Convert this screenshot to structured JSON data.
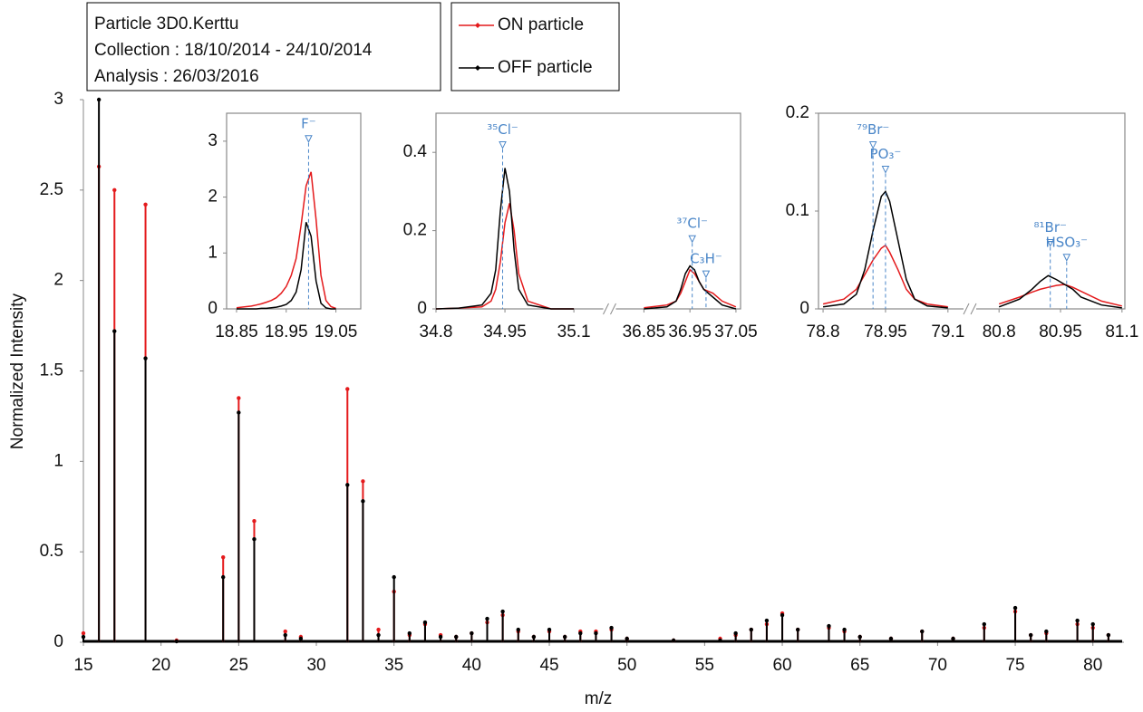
{
  "chart_data": [
    {
      "type": "spectrum",
      "info": [
        "Particle 3D0.Kerttu",
        "Collection : 18/10/2014 - 24/10/2014",
        "Analysis : 26/03/2016"
      ],
      "xlabel": "m/z",
      "ylabel": "Normalized Intensity",
      "xlim": [
        15,
        82
      ],
      "xticks": [
        15,
        20,
        25,
        30,
        35,
        40,
        45,
        50,
        55,
        60,
        65,
        70,
        75,
        80
      ],
      "ylim": [
        0,
        3
      ],
      "yticks": [
        0,
        0.5,
        1,
        1.5,
        2,
        2.5,
        3
      ],
      "x": [
        15,
        16,
        17,
        19,
        21,
        24,
        25,
        26,
        28,
        29,
        32,
        33,
        34,
        35,
        36,
        37,
        38,
        39,
        40,
        41,
        42,
        43,
        44,
        45,
        46,
        47,
        48,
        49,
        50,
        53,
        56,
        57,
        58,
        59,
        60,
        61,
        63,
        64,
        65,
        67,
        69,
        71,
        73,
        75,
        76,
        77,
        79,
        80,
        81
      ],
      "series": [
        {
          "name": "ON particle",
          "color": "#e41a1c",
          "values": [
            0.05,
            2.63,
            2.5,
            2.42,
            0.01,
            0.47,
            1.35,
            0.67,
            0.06,
            0.03,
            1.4,
            0.89,
            0.07,
            0.28,
            0.04,
            0.1,
            0.04,
            0.03,
            0.05,
            0.11,
            0.15,
            0.06,
            0.03,
            0.06,
            0.03,
            0.06,
            0.06,
            0.07,
            0.02,
            0.01,
            0.02,
            0.04,
            0.07,
            0.1,
            0.16,
            0.07,
            0.08,
            0.06,
            0.03,
            0.02,
            0.06,
            0.02,
            0.08,
            0.17,
            0.04,
            0.05,
            0.1,
            0.08,
            0.04
          ]
        },
        {
          "name": "OFF particle",
          "color": "#000000",
          "values": [
            0.03,
            3.0,
            1.72,
            1.57,
            0.005,
            0.36,
            1.27,
            0.57,
            0.04,
            0.02,
            0.87,
            0.78,
            0.04,
            0.36,
            0.05,
            0.11,
            0.03,
            0.03,
            0.05,
            0.13,
            0.17,
            0.07,
            0.03,
            0.07,
            0.03,
            0.05,
            0.05,
            0.08,
            0.02,
            0.01,
            0.01,
            0.05,
            0.07,
            0.12,
            0.15,
            0.07,
            0.09,
            0.07,
            0.03,
            0.02,
            0.06,
            0.02,
            0.1,
            0.19,
            0.04,
            0.06,
            0.12,
            0.1,
            0.04
          ]
        }
      ]
    },
    {
      "type": "line",
      "ylim": [
        0,
        3.5
      ],
      "yticks": [
        0,
        1,
        2,
        3
      ],
      "segments": [
        {
          "xlim": [
            18.83,
            19.1
          ],
          "xticks": [
            18.85,
            18.95,
            19.05
          ],
          "x": [
            18.85,
            18.86,
            18.87,
            18.88,
            18.89,
            18.9,
            18.91,
            18.92,
            18.93,
            18.94,
            18.95,
            18.96,
            18.97,
            18.98,
            18.99,
            19.0,
            19.01,
            19.02,
            19.03,
            19.04,
            19.05
          ],
          "series": [
            {
              "color": "#e41a1c",
              "values": [
                0.02,
                0.03,
                0.04,
                0.05,
                0.07,
                0.09,
                0.12,
                0.15,
                0.2,
                0.28,
                0.4,
                0.6,
                0.9,
                1.5,
                2.2,
                2.45,
                1.6,
                0.6,
                0.15,
                0.04,
                0.01
              ]
            },
            {
              "color": "#000000",
              "values": [
                0,
                0,
                0,
                0,
                0,
                0.01,
                0.01,
                0.02,
                0.03,
                0.05,
                0.08,
                0.15,
                0.3,
                0.7,
                1.55,
                1.3,
                0.5,
                0.1,
                0.02,
                0,
                0
              ]
            }
          ],
          "annotations": [
            {
              "text": "F⁻",
              "x": 18.995,
              "y": 3.05
            }
          ]
        }
      ]
    },
    {
      "type": "line",
      "ylim": [
        0,
        0.5
      ],
      "yticks": [
        0,
        0.2,
        0.4
      ],
      "segments": [
        {
          "xlim": [
            34.8,
            35.153
          ],
          "xticks": [
            34.8,
            34.95,
            35.1
          ],
          "x": [
            34.8,
            34.85,
            34.9,
            34.92,
            34.93,
            34.94,
            34.95,
            34.96,
            34.97,
            34.98,
            35.0,
            35.05,
            35.1
          ],
          "series": [
            {
              "color": "#e41a1c",
              "values": [
                0,
                0.002,
                0.005,
                0.02,
                0.05,
                0.12,
                0.22,
                0.27,
                0.2,
                0.09,
                0.02,
                0,
                0
              ]
            },
            {
              "color": "#000000",
              "values": [
                0,
                0.002,
                0.01,
                0.04,
                0.1,
                0.25,
                0.36,
                0.3,
                0.15,
                0.05,
                0.01,
                0,
                0
              ]
            }
          ],
          "annotations": [
            {
              "text": "³⁵Cl⁻",
              "x": 34.945,
              "y": 0.42
            }
          ]
        },
        {
          "xlim": [
            36.8,
            37.06
          ],
          "xticks": [
            36.85,
            36.95,
            37.05
          ],
          "x": [
            36.85,
            36.9,
            36.92,
            36.93,
            36.94,
            36.95,
            36.96,
            36.97,
            36.98,
            37.0,
            37.02,
            37.05
          ],
          "series": [
            {
              "color": "#e41a1c",
              "values": [
                0.003,
                0.01,
                0.02,
                0.04,
                0.07,
                0.1,
                0.09,
                0.07,
                0.05,
                0.04,
                0.02,
                0.005
              ]
            },
            {
              "color": "#000000",
              "values": [
                0,
                0.005,
                0.02,
                0.05,
                0.09,
                0.11,
                0.1,
                0.07,
                0.05,
                0.03,
                0.01,
                0
              ]
            }
          ],
          "annotations": [
            {
              "text": "³⁷Cl⁻",
              "x": 36.955,
              "y": 0.18
            },
            {
              "text": "C₃H⁻",
              "x": 36.985,
              "y": 0.09
            }
          ]
        }
      ]
    },
    {
      "type": "line",
      "ylim": [
        0,
        0.2
      ],
      "yticks": [
        0,
        0.1,
        0.2
      ],
      "segments": [
        {
          "xlim": [
            78.789,
            79.12
          ],
          "xticks": [
            78.8,
            78.95,
            79.1
          ],
          "x": [
            78.8,
            78.85,
            78.88,
            78.9,
            78.92,
            78.94,
            78.95,
            78.96,
            78.98,
            79.0,
            79.02,
            79.05,
            79.1
          ],
          "series": [
            {
              "color": "#e41a1c",
              "values": [
                0.005,
                0.01,
                0.02,
                0.035,
                0.05,
                0.062,
                0.065,
                0.058,
                0.04,
                0.02,
                0.01,
                0.005,
                0.002
              ]
            },
            {
              "color": "#000000",
              "values": [
                0.002,
                0.005,
                0.015,
                0.04,
                0.08,
                0.115,
                0.12,
                0.11,
                0.07,
                0.03,
                0.01,
                0.003,
                0.001
              ]
            }
          ],
          "annotations": [
            {
              "text": "⁷⁹Br⁻",
              "x": 78.92,
              "y": 0.168
            },
            {
              "text": "PO₃⁻",
              "x": 78.95,
              "y": 0.143
            }
          ]
        },
        {
          "xlim": [
            80.762,
            81.107
          ],
          "xticks": [
            80.8,
            80.95,
            81.1
          ],
          "x": [
            80.8,
            80.85,
            80.88,
            80.9,
            80.92,
            80.94,
            80.96,
            80.98,
            81.0,
            81.05,
            81.1
          ],
          "series": [
            {
              "color": "#e41a1c",
              "values": [
                0.005,
                0.012,
                0.017,
                0.02,
                0.022,
                0.024,
                0.025,
                0.022,
                0.018,
                0.008,
                0.003
              ]
            },
            {
              "color": "#000000",
              "values": [
                0.002,
                0.01,
                0.02,
                0.028,
                0.034,
                0.03,
                0.025,
                0.02,
                0.012,
                0.004,
                0.001
              ]
            }
          ],
          "annotations": [
            {
              "text": "⁸¹Br⁻",
              "x": 80.925,
              "y": 0.068
            },
            {
              "text": "HSO₃⁻",
              "x": 80.965,
              "y": 0.053
            }
          ]
        }
      ]
    }
  ]
}
